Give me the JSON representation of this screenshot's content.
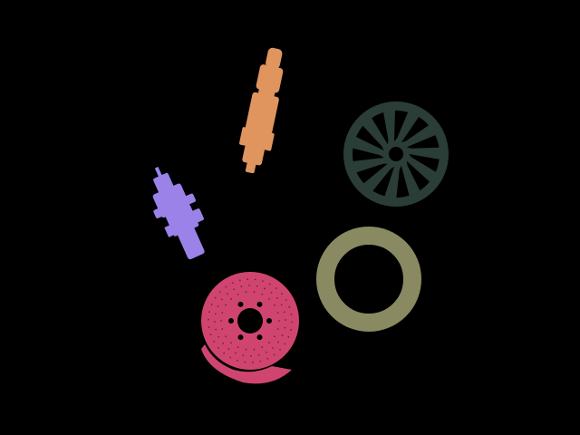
{
  "scene": {
    "background": "#000000",
    "objects": [
      {
        "name": "spark-plug",
        "color": "#e0955f"
      },
      {
        "name": "wheel-rim",
        "color": "#2a3d36"
      },
      {
        "name": "injector-part",
        "color": "#9a82e8"
      },
      {
        "name": "washer-ring",
        "color": "#8a8a62"
      },
      {
        "name": "brake-disc",
        "color": "#cf4570"
      }
    ]
  }
}
